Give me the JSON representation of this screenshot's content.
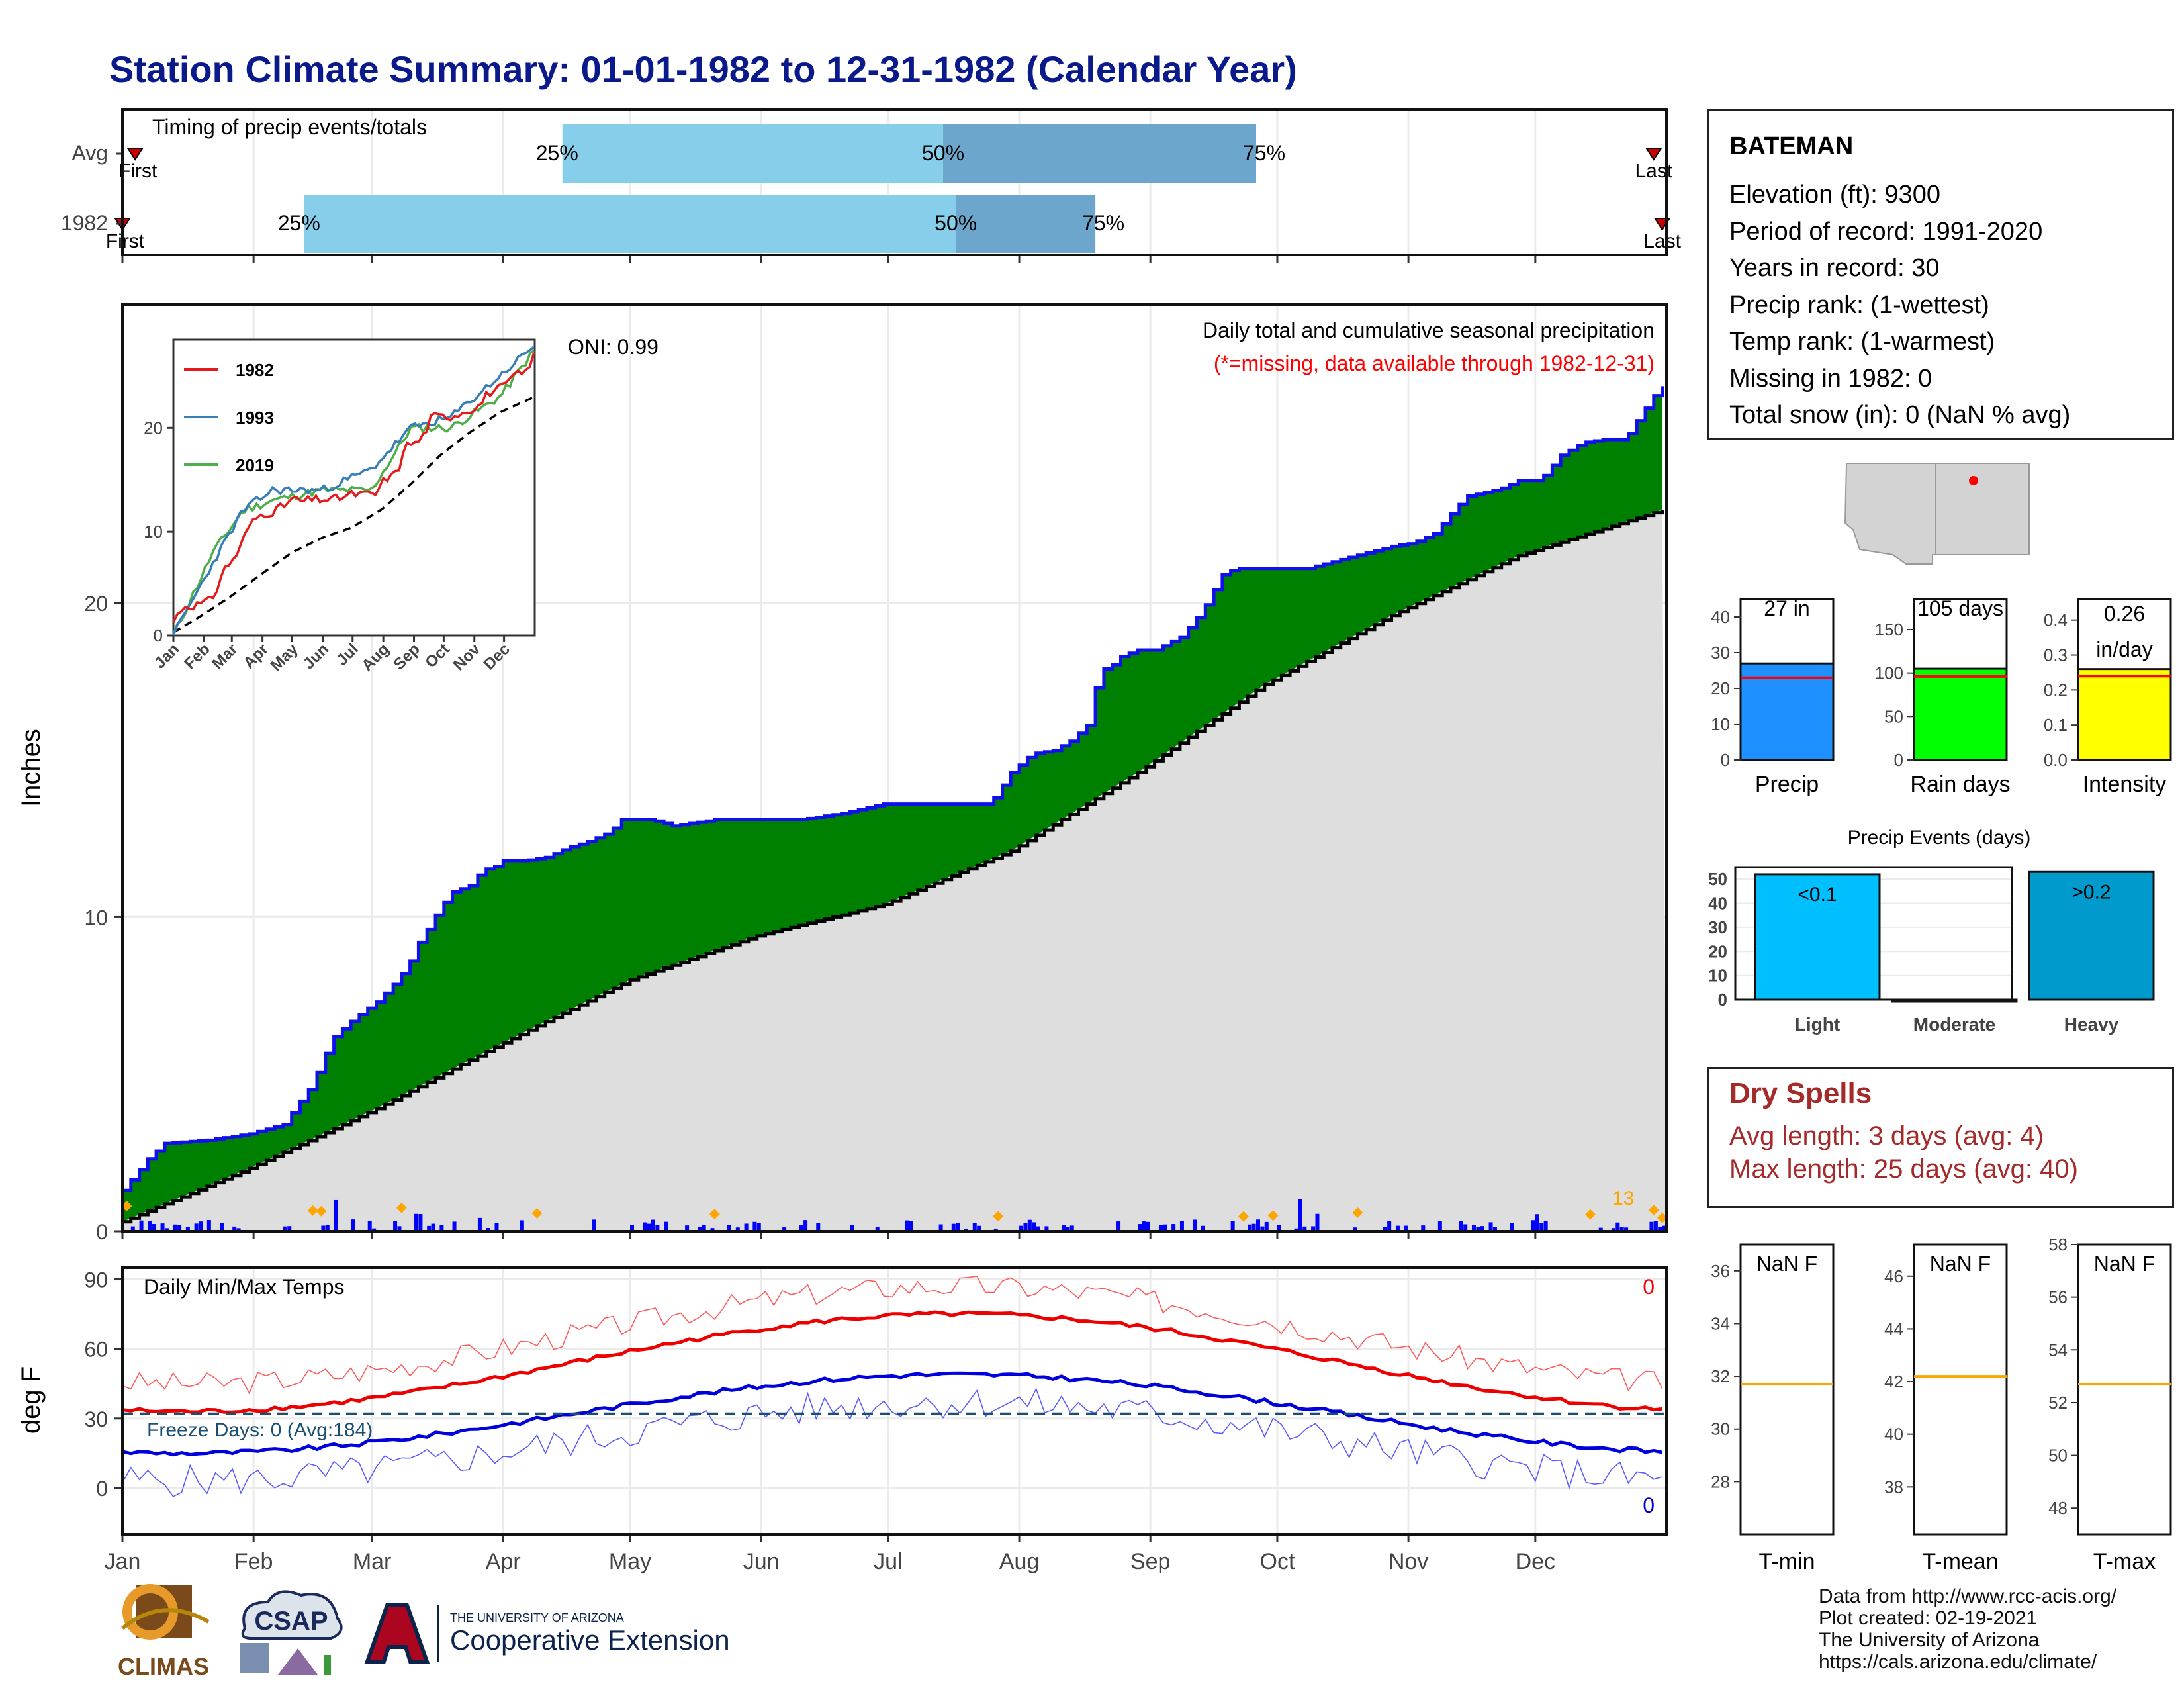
{
  "title": "Station Climate Summary: 01-01-1982 to 12-31-1982 (Calendar Year)",
  "colors": {
    "title": "#0a1a8a",
    "green": "#008000",
    "blue": "#0000ff",
    "red": "#ff0000",
    "grey": "#dedede",
    "light_blue": "#87ceeb",
    "mid_blue": "#6ca6cd",
    "orange": "#ffa500",
    "dry": "#a52a2a"
  },
  "timing": {
    "label": "Timing of precip events/totals",
    "rows": [
      {
        "label": "Avg",
        "first": "First",
        "last": "Last",
        "q25": "25%",
        "q50": "50%",
        "q75": "75%",
        "q25_date": "1982-04-15",
        "q50_date": "1982-07-14",
        "q75_date": "1982-09-26",
        "first_date": "1982-01-04",
        "last_date": "1982-12-29"
      },
      {
        "label": "1982",
        "first": "First",
        "last": "Last",
        "q25": "25%",
        "q50": "50%",
        "q75": "75%",
        "q25_date": "1982-02-13",
        "q50_date": "1982-07-17",
        "q75_date": "1982-08-19",
        "first_date": "1982-01-01",
        "last_date": "1982-12-31"
      }
    ]
  },
  "precip_panel": {
    "ylabel": "Inches",
    "yticks": [
      "0",
      "10",
      "20"
    ],
    "caption1": "Daily total and cumulative seasonal precipitation",
    "caption2": "(*=missing, data available through 1982-12-31)",
    "oni": "ONI: 0.99",
    "extreme_label": "13"
  },
  "inset": {
    "legend": [
      "1982",
      "1993",
      "2019"
    ],
    "legend_colors": [
      "#e41a1c",
      "#377eb8",
      "#4daf4a"
    ],
    "yticks": [
      "0",
      "10",
      "20"
    ],
    "xticks": [
      "Jan",
      "Feb",
      "Mar",
      "Apr",
      "May",
      "Jun",
      "Jul",
      "Aug",
      "Sep",
      "Oct",
      "Nov",
      "Dec"
    ]
  },
  "temp_panel": {
    "ylabel": "deg F",
    "label": "Daily Min/Max Temps",
    "yticks": [
      "0",
      "30",
      "60",
      "90"
    ],
    "freeze_label": "Freeze Days: 0 (Avg:184)",
    "max_count": "0",
    "min_count": "0"
  },
  "months": [
    "Jan",
    "Feb",
    "Mar",
    "Apr",
    "May",
    "Jun",
    "Jul",
    "Aug",
    "Sep",
    "Oct",
    "Nov",
    "Dec"
  ],
  "station": {
    "name": "BATEMAN",
    "lines": [
      "Elevation (ft): 9300",
      "Period of record: 1991-2020",
      "Years in record: 30",
      "Precip rank:  (1-wettest)",
      "Temp rank:  (1-warmest)",
      "Missing in 1982: 0",
      "Total snow (in): 0 (NaN % avg)"
    ]
  },
  "summary_bars": [
    {
      "label": "Precip",
      "top": "27 in",
      "value": 27,
      "avg": 23,
      "yticks": [
        "0",
        "10",
        "20",
        "30",
        "40"
      ],
      "ymax": 45,
      "color": "#1e90ff"
    },
    {
      "label": "Rain days",
      "top": "105 days",
      "value": 105,
      "avg": 96,
      "yticks": [
        "0",
        "50",
        "100",
        "150"
      ],
      "ymax": 185,
      "color": "#00ff00"
    },
    {
      "label": "Intensity",
      "top1": "0.26",
      "top2": "in/day",
      "value": 0.26,
      "avg": 0.24,
      "yticks": [
        "0.0",
        "0.1",
        "0.2",
        "0.3",
        "0.4"
      ],
      "ymax": 0.46,
      "color": "#ffff00"
    }
  ],
  "events": {
    "title": "Precip Events (days)",
    "yticks": [
      "0",
      "10",
      "20",
      "30",
      "40",
      "50"
    ],
    "categories": [
      "Light",
      "Moderate",
      "Heavy"
    ],
    "values": [
      52,
      0,
      53
    ],
    "bar_labels": [
      "<0.1",
      "",
      ">0.2"
    ],
    "colors": [
      "#00bfff",
      "#00bfff",
      "#009acd"
    ]
  },
  "dry_spells": {
    "title": "Dry Spells",
    "avg_line": "Avg length: 3 days (avg: 4)",
    "max_line": "Max length: 25 days (avg: 40)"
  },
  "temp_summaries": [
    {
      "label": "T-min",
      "value": "NaN F",
      "yticks": [
        "28",
        "30",
        "32",
        "34",
        "36"
      ],
      "ymin": 26,
      "ymax": 37,
      "line": 31.7
    },
    {
      "label": "T-mean",
      "value": "NaN F",
      "yticks": [
        "38",
        "40",
        "42",
        "44",
        "46"
      ],
      "ymin": 36.2,
      "ymax": 47.2,
      "line": 42.2
    },
    {
      "label": "T-max",
      "value": "NaN F",
      "yticks": [
        "48",
        "50",
        "52",
        "54",
        "56",
        "58"
      ],
      "ymin": 47,
      "ymax": 58,
      "line": 52.7
    }
  ],
  "credits": [
    "Data from http://www.rcc-acis.org/",
    "Plot created: 02-19-2021",
    "The University of Arizona",
    "https://cals.arizona.edu/climate/"
  ],
  "logos": {
    "climas": "CLIMAS",
    "csap": "CSAP",
    "ua_line1": "THE UNIVERSITY OF ARIZONA",
    "ua_line2": "Cooperative Extension"
  },
  "chart_data": {
    "type": "area",
    "title": "Daily total and cumulative seasonal precipitation",
    "ylabel": "Inches",
    "ylim": [
      0,
      29.5
    ],
    "x_unit": "day of year",
    "series": [
      {
        "name": "1982",
        "x": [
          0,
          6,
          10,
          20,
          30,
          38,
          45,
          47,
          50,
          55,
          60,
          65,
          68,
          70,
          72,
          75,
          78,
          82,
          85,
          88,
          90,
          95,
          100,
          105,
          110,
          115,
          118,
          122,
          125,
          130,
          140,
          160,
          170,
          180,
          190,
          200,
          205,
          210,
          215,
          220,
          224,
          228,
          231,
          233,
          236,
          240,
          244,
          250,
          255,
          260,
          263,
          265,
          266,
          270,
          280,
          300,
          305,
          310,
          315,
          318,
          325,
          330,
          335,
          340,
          345,
          350,
          355,
          360,
          363,
          365
        ],
        "values": [
          1.3,
          2.3,
          2.8,
          2.9,
          3.1,
          3.4,
          4.7,
          5.4,
          6.2,
          6.8,
          7.3,
          8.0,
          8.6,
          9.2,
          9.6,
          10.3,
          10.8,
          11.0,
          11.5,
          11.6,
          11.8,
          11.8,
          11.9,
          12.2,
          12.4,
          12.7,
          13.1,
          13.1,
          13.1,
          12.9,
          13.1,
          13.1,
          13.3,
          13.6,
          13.6,
          13.6,
          13.6,
          14.6,
          15.2,
          15.3,
          15.6,
          16.1,
          17.9,
          17.9,
          18.3,
          18.5,
          18.5,
          18.9,
          19.7,
          20.9,
          21.1,
          21.1,
          21.1,
          21.1,
          21.1,
          21.8,
          21.9,
          22.2,
          23.0,
          23.4,
          23.6,
          23.9,
          23.9,
          24.7,
          25.1,
          25.2,
          25.2,
          26.2,
          26.8,
          27.0
        ]
      },
      {
        "name": "Average",
        "x": [
          0,
          30,
          60,
          90,
          120,
          150,
          180,
          210,
          240,
          270,
          300,
          330,
          365
        ],
        "values": [
          0.3,
          2.0,
          3.9,
          6.0,
          8.0,
          9.4,
          10.4,
          12.1,
          14.6,
          17.4,
          19.6,
          21.5,
          23.0
        ]
      }
    ]
  }
}
